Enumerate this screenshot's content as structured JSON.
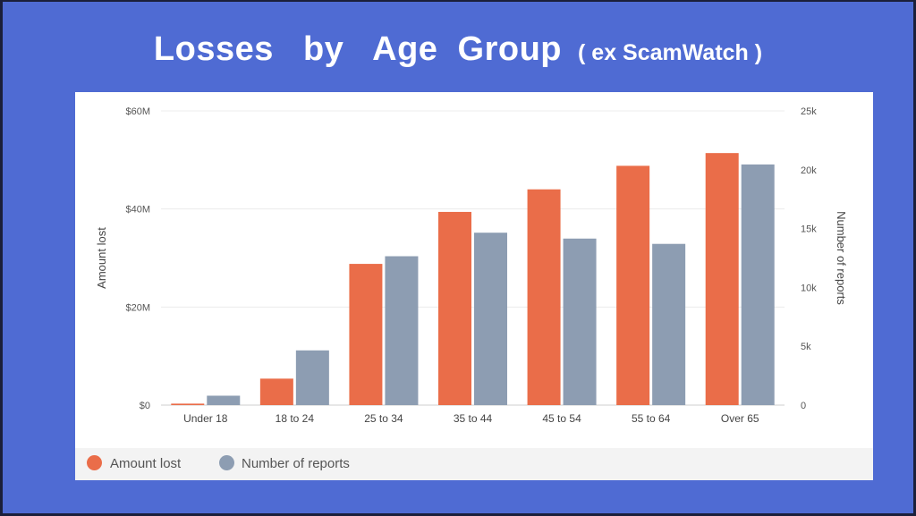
{
  "title": {
    "main": "Losses   by   Age  Group",
    "sub": "( ex ScamWatch )"
  },
  "chart_data": {
    "type": "bar",
    "categories": [
      "Under 18",
      "18 to 24",
      "25 to 34",
      "35 to 44",
      "45 to 54",
      "55 to 64",
      "Over 65"
    ],
    "series": [
      {
        "name": "Amount lost",
        "axis": "left",
        "color": "#ea6d49",
        "values": [
          0.3,
          5.4,
          28.8,
          39.4,
          44.0,
          48.8,
          51.4
        ]
      },
      {
        "name": "Number of reports",
        "axis": "right",
        "color": "#8d9db2",
        "values": [
          800,
          4650,
          12650,
          14650,
          14150,
          13700,
          20450
        ]
      }
    ],
    "y_left": {
      "label": "Amount lost",
      "ticks": [
        "$0",
        "$20M",
        "$40M",
        "$60M"
      ],
      "ylim": [
        0,
        60
      ]
    },
    "y_right": {
      "label": "Number of reports",
      "ticks": [
        "0",
        "5k",
        "10k",
        "15k",
        "20k",
        "25k"
      ],
      "ylim": [
        0,
        25000
      ]
    },
    "grid": true,
    "legend": "bottom-left"
  }
}
